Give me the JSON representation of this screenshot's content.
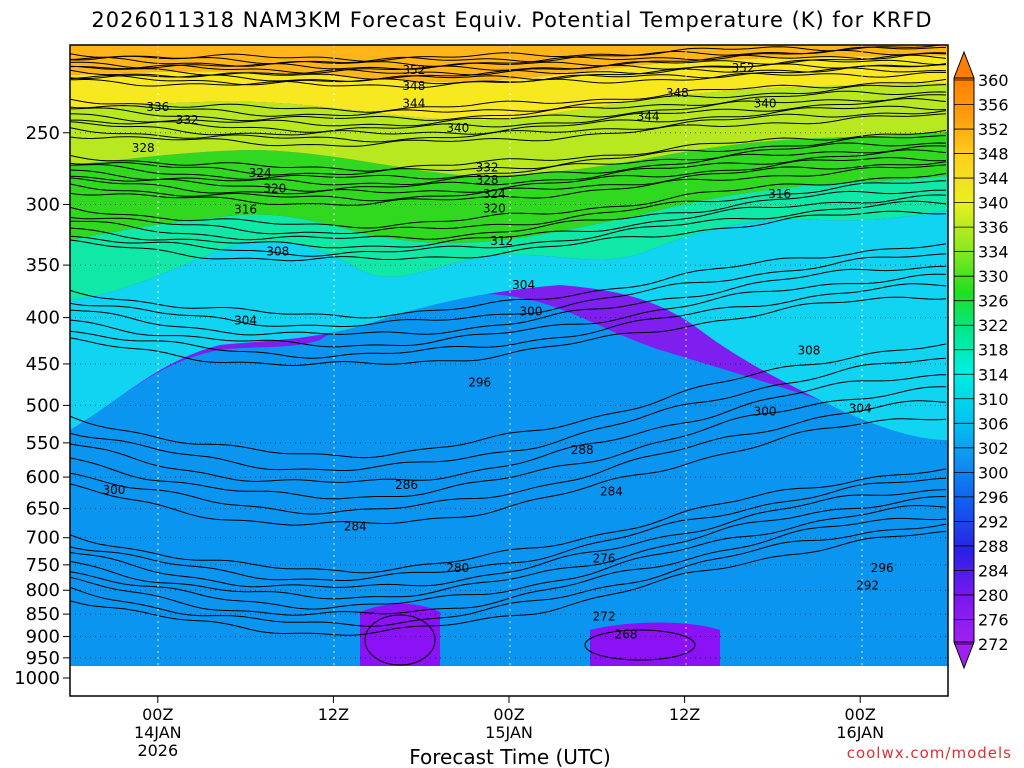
{
  "title": "2026011318 NAM3KM Forecast Equiv. Potential Temperature (K) for KRFD",
  "credit": "coolwx.com/models",
  "chart_data": {
    "type": "heatmap",
    "title": "2026011318 NAM3KM Forecast Equiv. Potential Temperature (K) for KRFD",
    "xlabel": "Forecast Time (UTC)",
    "ylabel": "",
    "x_ticks": [
      {
        "label": "00Z",
        "sub1": "14JAN",
        "sub2": "2026",
        "hour": 6
      },
      {
        "label": "12Z",
        "sub1": "",
        "sub2": "",
        "hour": 18
      },
      {
        "label": "00Z",
        "sub1": "15JAN",
        "sub2": "",
        "hour": 30
      },
      {
        "label": "12Z",
        "sub1": "",
        "sub2": "",
        "hour": 42
      },
      {
        "label": "00Z",
        "sub1": "16JAN",
        "sub2": "",
        "hour": 54
      }
    ],
    "xlim_hours": [
      0,
      60
    ],
    "y_ticks": [
      250,
      300,
      350,
      400,
      450,
      500,
      550,
      600,
      650,
      700,
      750,
      800,
      850,
      900,
      950,
      1000
    ],
    "ylim_hPa": [
      200,
      1000
    ],
    "y_scale": "log-pressure",
    "colorbar_ticks": [
      360,
      356,
      352,
      348,
      344,
      340,
      336,
      334,
      330,
      326,
      322,
      318,
      314,
      310,
      306,
      302,
      300,
      296,
      292,
      288,
      284,
      280,
      276,
      272
    ],
    "contour_labels": [
      {
        "text": "352",
        "hour": 23.5,
        "p": 213
      },
      {
        "text": "348",
        "hour": 23.5,
        "p": 222
      },
      {
        "text": "344",
        "hour": 23.5,
        "p": 232
      },
      {
        "text": "340",
        "hour": 26.5,
        "p": 247
      },
      {
        "text": "336",
        "hour": 6.0,
        "p": 234
      },
      {
        "text": "332",
        "hour": 8.0,
        "p": 242
      },
      {
        "text": "328",
        "hour": 5.0,
        "p": 260
      },
      {
        "text": "324",
        "hour": 13.0,
        "p": 277
      },
      {
        "text": "320",
        "hour": 14.0,
        "p": 288
      },
      {
        "text": "316",
        "hour": 12.0,
        "p": 304
      },
      {
        "text": "332",
        "hour": 28.5,
        "p": 273
      },
      {
        "text": "328",
        "hour": 28.5,
        "p": 282
      },
      {
        "text": "324",
        "hour": 29.0,
        "p": 292
      },
      {
        "text": "320",
        "hour": 29.0,
        "p": 303
      },
      {
        "text": "312",
        "hour": 29.5,
        "p": 329
      },
      {
        "text": "304",
        "hour": 31.0,
        "p": 368
      },
      {
        "text": "300",
        "hour": 31.5,
        "p": 394
      },
      {
        "text": "308",
        "hour": 14.2,
        "p": 338
      },
      {
        "text": "304",
        "hour": 12.0,
        "p": 403
      },
      {
        "text": "296",
        "hour": 28.0,
        "p": 472
      },
      {
        "text": "300",
        "hour": 3.0,
        "p": 620
      },
      {
        "text": "288",
        "hour": 35.0,
        "p": 560
      },
      {
        "text": "286",
        "hour": 23.0,
        "p": 612
      },
      {
        "text": "284",
        "hour": 37.0,
        "p": 622
      },
      {
        "text": "284",
        "hour": 19.5,
        "p": 680
      },
      {
        "text": "280",
        "hour": 26.5,
        "p": 756
      },
      {
        "text": "276",
        "hour": 36.5,
        "p": 738
      },
      {
        "text": "272",
        "hour": 36.5,
        "p": 855
      },
      {
        "text": "268",
        "hour": 38.0,
        "p": 895
      },
      {
        "text": "352",
        "hour": 46.0,
        "p": 212
      },
      {
        "text": "348",
        "hour": 41.5,
        "p": 226
      },
      {
        "text": "344",
        "hour": 39.5,
        "p": 240
      },
      {
        "text": "340",
        "hour": 47.5,
        "p": 232
      },
      {
        "text": "316",
        "hour": 48.5,
        "p": 292
      },
      {
        "text": "308",
        "hour": 50.5,
        "p": 435
      },
      {
        "text": "300",
        "hour": 47.5,
        "p": 508
      },
      {
        "text": "304",
        "hour": 54.0,
        "p": 504
      },
      {
        "text": "296",
        "hour": 55.5,
        "p": 756
      },
      {
        "text": "292",
        "hour": 54.5,
        "p": 790
      }
    ]
  }
}
